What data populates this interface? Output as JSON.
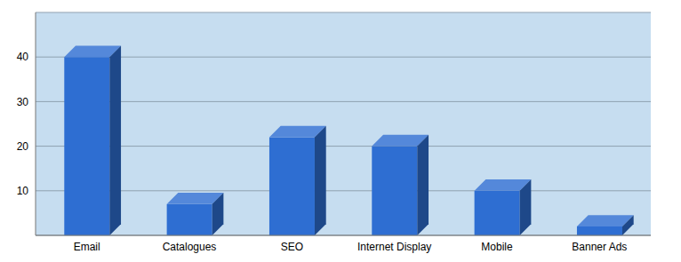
{
  "chart_data": {
    "type": "bar",
    "categories": [
      "Email",
      "Catalogues",
      "SEO",
      "Internet Display",
      "Mobile",
      "Banner Ads"
    ],
    "values": [
      40,
      7,
      22,
      20,
      10,
      2
    ],
    "color": "#2e6ed2",
    "ylim": [
      0,
      50
    ],
    "yticks": [
      10,
      20,
      30,
      40
    ],
    "grid": true
  }
}
